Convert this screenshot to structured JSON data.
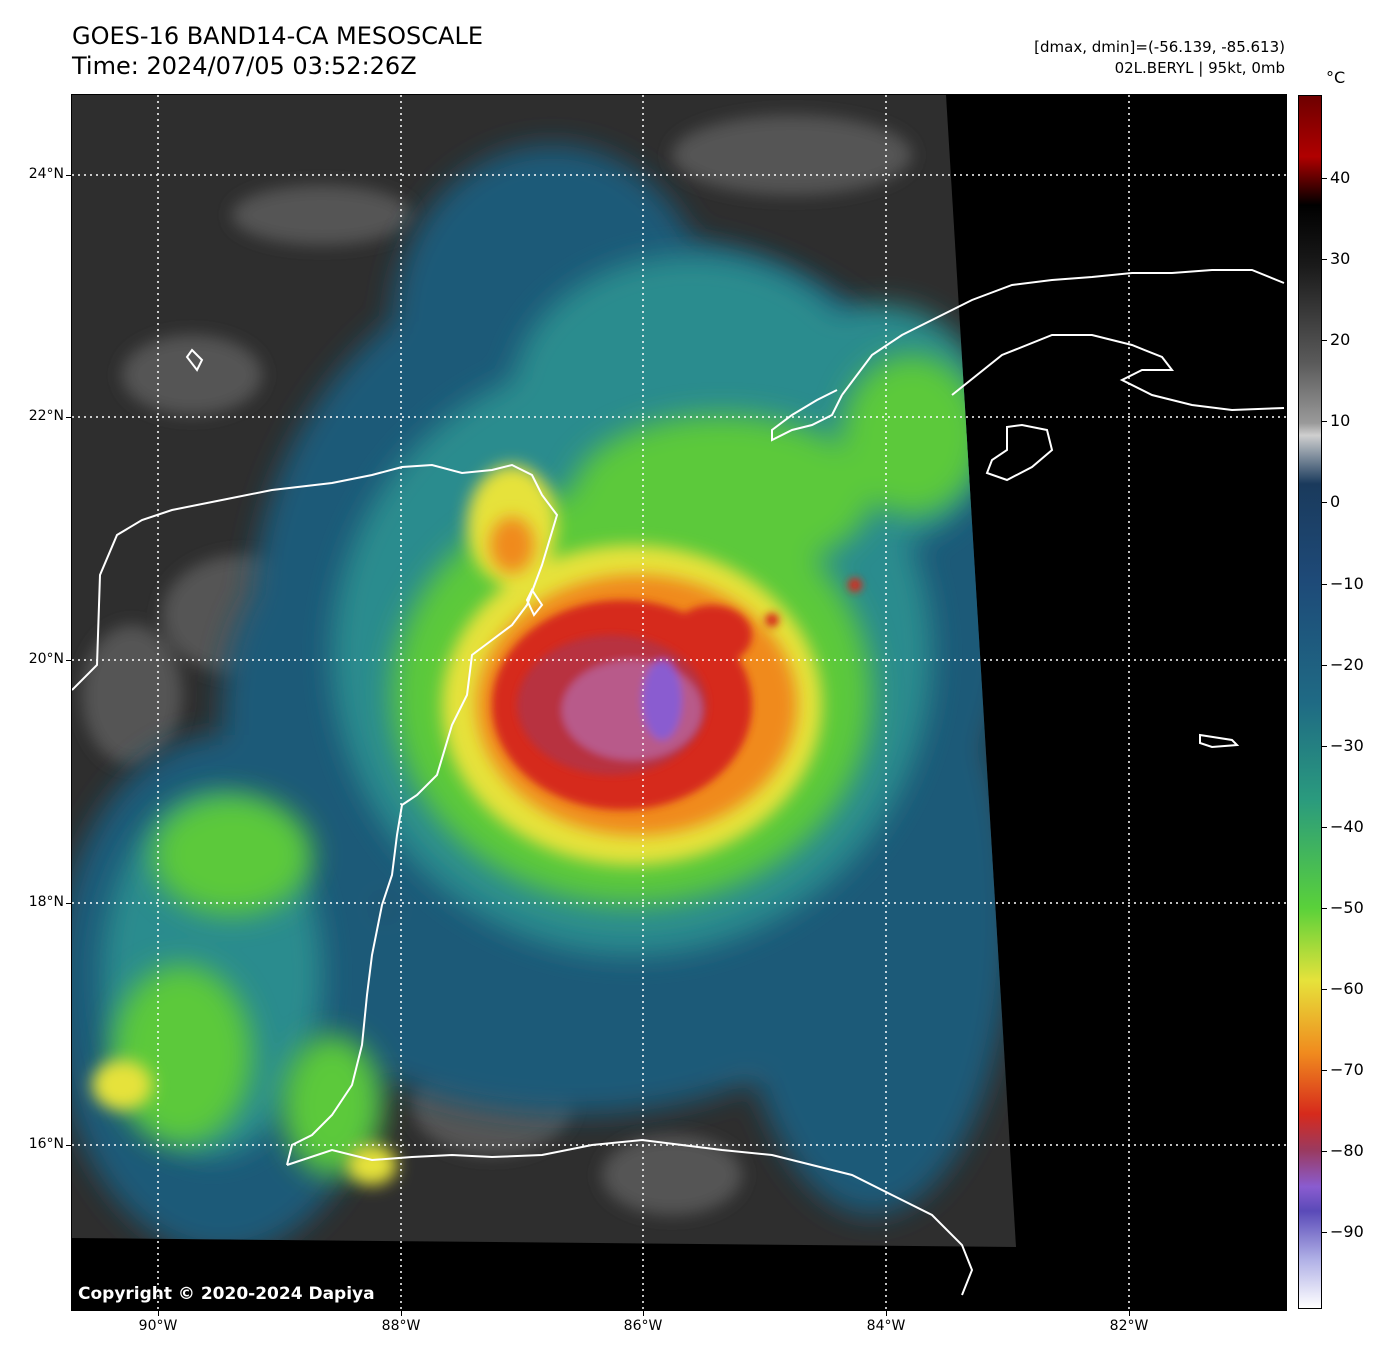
{
  "header": {
    "title_line1": "GOES-16 BAND14-CA MESOSCALE",
    "title_line2": "Time: 2024/07/05 03:52:26Z",
    "info_line1": "[dmax, dmin]=(-56.139, -85.613)",
    "info_line2": "02L.BERYL | 95kt, 0mb"
  },
  "map": {
    "lat_labels": [
      "24°N",
      "22°N",
      "20°N",
      "18°N",
      "16°N"
    ],
    "lon_labels": [
      "90°W",
      "88°W",
      "86°W",
      "84°W",
      "82°W"
    ],
    "copyright": "Copyright © 2020-2024 Dapiya",
    "colors": {
      "background": "#000000",
      "land_gray": "#3a3a3a",
      "cloud_teal": "#1f6f7f",
      "cloud_green": "#6fd23a",
      "cloud_yellow": "#e5e23a",
      "cloud_red": "#d9261a",
      "eye_purple": "#8a5cd0",
      "coastline": "#ffffff",
      "grid": "#ffffff"
    }
  },
  "colorbar": {
    "unit": "°C",
    "labels": [
      "40",
      "30",
      "20",
      "10",
      "0",
      "−10",
      "−20",
      "−30",
      "−40",
      "−50",
      "−60",
      "−70",
      "−80",
      "−90"
    ]
  }
}
